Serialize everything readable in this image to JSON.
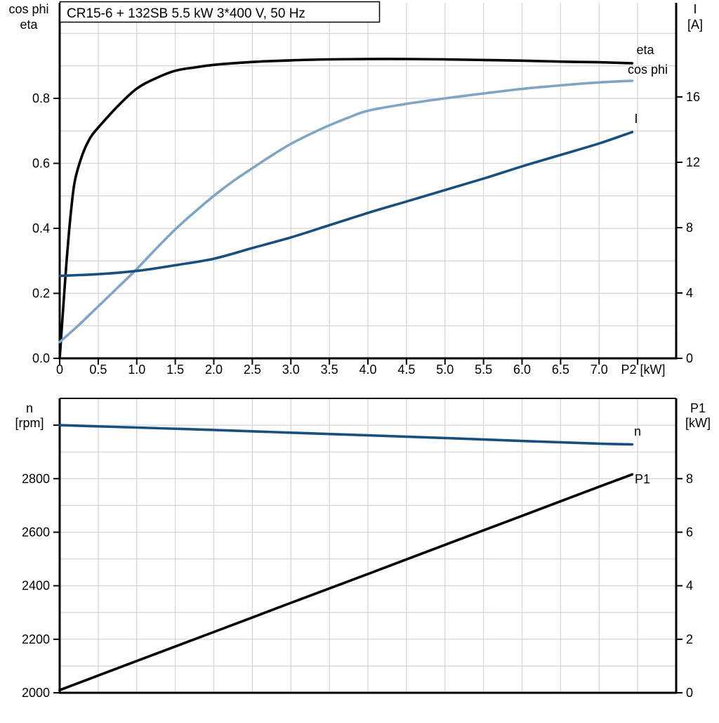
{
  "colors": {
    "eta": "#000000",
    "cos_phi": "#7fa5c6",
    "current": "#17507f",
    "speed": "#17507f",
    "p1": "#000000",
    "grid": "#d4d4d4",
    "axis": "#000000",
    "background": "#ffffff"
  },
  "chart_data": [
    {
      "type": "line",
      "title": "CR15-6 + 132SB   5.5 kW   3*400 V, 50 Hz",
      "x_axis": {
        "label": "P2 [kW]",
        "min": 0,
        "max": 8,
        "grid_step": 0.5,
        "tick_values": [
          0,
          0.5,
          1,
          1.5,
          2,
          2.5,
          3,
          3.5,
          4,
          4.5,
          5,
          5.5,
          6,
          6.5,
          7,
          7.5
        ],
        "tick_labels": [
          "0",
          "0.5",
          "1.0",
          "1.5",
          "2.0",
          "2.5",
          "3.0",
          "3.5",
          "4.0",
          "4.5",
          "5.0",
          "5.5",
          "6.0",
          "6.5",
          "7.0",
          ""
        ]
      },
      "y_left": {
        "axis_label_lines": [
          "cos phi",
          "eta"
        ],
        "min": 0,
        "max": 1.094,
        "grid_step": 0.1,
        "tick_values": [
          0,
          0.2,
          0.4,
          0.6,
          0.8
        ],
        "tick_labels": [
          "0.0",
          "0.2",
          "0.4",
          "0.6",
          "0.8"
        ]
      },
      "y_right": {
        "axis_label_lines": [
          "I",
          "[A]"
        ],
        "min": 0,
        "max": 21.76,
        "tick_values": [
          0,
          4,
          8,
          12,
          16
        ],
        "tick_labels": [
          "0",
          "4",
          "8",
          "12",
          "16"
        ]
      },
      "legend_position": "curve-end-labels",
      "grid": true,
      "series": [
        {
          "id": "eta",
          "label": "eta",
          "axis": "left",
          "color_key": "eta",
          "points": [
            [
              0,
              0
            ],
            [
              0.05,
              0.17
            ],
            [
              0.1,
              0.33
            ],
            [
              0.15,
              0.46
            ],
            [
              0.2,
              0.55
            ],
            [
              0.3,
              0.63
            ],
            [
              0.4,
              0.68
            ],
            [
              0.5,
              0.71
            ],
            [
              0.75,
              0.775
            ],
            [
              1,
              0.83
            ],
            [
              1.25,
              0.862
            ],
            [
              1.5,
              0.885
            ],
            [
              1.75,
              0.895
            ],
            [
              2,
              0.903
            ],
            [
              2.5,
              0.912
            ],
            [
              3,
              0.917
            ],
            [
              3.5,
              0.92
            ],
            [
              4,
              0.921
            ],
            [
              4.5,
              0.921
            ],
            [
              5,
              0.92
            ],
            [
              5.5,
              0.918
            ],
            [
              6,
              0.916
            ],
            [
              6.5,
              0.913
            ],
            [
              7,
              0.911
            ],
            [
              7.43,
              0.908
            ]
          ]
        },
        {
          "id": "cos-phi",
          "label": "cos phi",
          "axis": "left",
          "color_key": "cos_phi",
          "points": [
            [
              0,
              0.05
            ],
            [
              0.25,
              0.103
            ],
            [
              0.5,
              0.16
            ],
            [
              0.75,
              0.217
            ],
            [
              1,
              0.275
            ],
            [
              1.25,
              0.337
            ],
            [
              1.5,
              0.397
            ],
            [
              1.75,
              0.45
            ],
            [
              2,
              0.5
            ],
            [
              2.25,
              0.545
            ],
            [
              2.5,
              0.585
            ],
            [
              2.75,
              0.624
            ],
            [
              3,
              0.66
            ],
            [
              3.25,
              0.69
            ],
            [
              3.5,
              0.717
            ],
            [
              3.75,
              0.741
            ],
            [
              4,
              0.762
            ],
            [
              4.5,
              0.783
            ],
            [
              5,
              0.8
            ],
            [
              5.5,
              0.815
            ],
            [
              6,
              0.829
            ],
            [
              6.5,
              0.84
            ],
            [
              7,
              0.849
            ],
            [
              7.43,
              0.854
            ]
          ]
        },
        {
          "id": "current",
          "label": "I",
          "axis": "right",
          "color_key": "current",
          "points": [
            [
              0,
              5.05
            ],
            [
              0.5,
              5.15
            ],
            [
              1,
              5.35
            ],
            [
              1.5,
              5.7
            ],
            [
              2,
              6.1
            ],
            [
              2.5,
              6.75
            ],
            [
              3,
              7.4
            ],
            [
              3.5,
              8.15
            ],
            [
              4,
              8.9
            ],
            [
              4.5,
              9.6
            ],
            [
              5,
              10.3
            ],
            [
              5.5,
              11
            ],
            [
              6,
              11.75
            ],
            [
              6.5,
              12.45
            ],
            [
              7,
              13.15
            ],
            [
              7.43,
              13.85
            ]
          ]
        }
      ]
    },
    {
      "type": "line",
      "title": "",
      "x_axis": {
        "label": "",
        "min": 0,
        "max": 8,
        "grid_step": 0.5,
        "tick_values": [],
        "tick_labels": []
      },
      "y_left": {
        "axis_label_lines": [
          "n",
          "[rpm]"
        ],
        "min": 2000,
        "max": 3100,
        "grid_step": 100,
        "tick_values": [
          2000,
          2200,
          2400,
          2600,
          2800,
          3000
        ],
        "tick_labels": [
          "2000",
          "2200",
          "2400",
          "2600",
          "2800",
          ""
        ]
      },
      "y_right": {
        "axis_label_lines": [
          "P1",
          "[kW]"
        ],
        "min": 0,
        "max": 11,
        "tick_values": [
          0,
          2,
          4,
          6,
          8
        ],
        "tick_labels": [
          "0",
          "2",
          "4",
          "6",
          "8"
        ]
      },
      "legend_position": "curve-end-labels",
      "grid": true,
      "series": [
        {
          "id": "speed",
          "label": "n",
          "axis": "left",
          "color_key": "speed",
          "points": [
            [
              0,
              3000
            ],
            [
              1,
              2991
            ],
            [
              2,
              2982
            ],
            [
              3,
              2972
            ],
            [
              4,
              2962
            ],
            [
              5,
              2952
            ],
            [
              6,
              2941
            ],
            [
              7,
              2931
            ],
            [
              7.43,
              2928
            ]
          ]
        },
        {
          "id": "p1",
          "label": "P1",
          "axis": "right",
          "color_key": "p1",
          "points": [
            [
              0,
              0.1
            ],
            [
              1,
              1.19
            ],
            [
              2,
              2.27
            ],
            [
              3,
              3.36
            ],
            [
              4,
              4.44
            ],
            [
              5,
              5.53
            ],
            [
              6,
              6.61
            ],
            [
              7,
              7.7
            ],
            [
              7.43,
              8.16
            ]
          ]
        }
      ]
    }
  ]
}
